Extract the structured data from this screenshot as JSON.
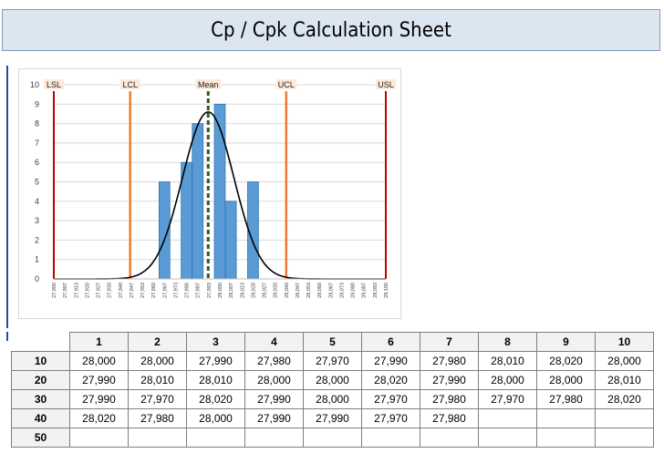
{
  "title": "Cp / Cpk Calculation Sheet",
  "colors": {
    "title_bg": "#dce6f1",
    "bar": "#5b9bd5",
    "spec_limit": "#c00000",
    "control_limit": "#ed7d31",
    "mean": "#375623",
    "curve": "#000000"
  },
  "chart_data": {
    "type": "bar",
    "title": "",
    "xlabel": "",
    "ylabel": "",
    "ylim": [
      0,
      10
    ],
    "yticks": [
      "0",
      "1",
      "2",
      "3",
      "4",
      "5",
      "6",
      "7",
      "8",
      "9",
      "10"
    ],
    "categories": [
      "27,900",
      "27,907",
      "27,913",
      "27,920",
      "27,927",
      "27,933",
      "27,940",
      "27,947",
      "27,953",
      "27,960",
      "27,967",
      "27,973",
      "27,980",
      "27,987",
      "27,993",
      "28,000",
      "28,007",
      "28,013",
      "28,020",
      "28,027",
      "28,033",
      "28,040",
      "28,047",
      "28,053",
      "28,060",
      "28,067",
      "28,073",
      "28,080",
      "28,087",
      "28,093",
      "28,100"
    ],
    "values": [
      0,
      0,
      0,
      0,
      0,
      0,
      0,
      0,
      0,
      0,
      5,
      0,
      6,
      8,
      0,
      9,
      4,
      0,
      5,
      0,
      0,
      0,
      0,
      0,
      0,
      0,
      0,
      0,
      0,
      0,
      0
    ],
    "limits": [
      {
        "label": "LSL",
        "value": 27900,
        "kind": "spec"
      },
      {
        "label": "LCL",
        "value": 27946,
        "kind": "control"
      },
      {
        "label": "Mean",
        "value": 27993,
        "kind": "mean"
      },
      {
        "label": "UCL",
        "value": 28040,
        "kind": "control"
      },
      {
        "label": "USL",
        "value": 28100,
        "kind": "spec"
      }
    ],
    "curve": {
      "mean": 27993,
      "sigma": 15.5,
      "peak": 8.6
    }
  },
  "table": {
    "columns": [
      "1",
      "2",
      "3",
      "4",
      "5",
      "6",
      "7",
      "8",
      "9",
      "10"
    ],
    "rows": [
      {
        "label": "10",
        "cells": [
          "28,000",
          "28,000",
          "27,990",
          "27,980",
          "27,970",
          "27,990",
          "27,980",
          "28,010",
          "28,020",
          "28,000"
        ]
      },
      {
        "label": "20",
        "cells": [
          "27,990",
          "28,010",
          "28,010",
          "28,000",
          "28,000",
          "28,020",
          "27,990",
          "28,000",
          "28,000",
          "28,010"
        ]
      },
      {
        "label": "30",
        "cells": [
          "27,990",
          "27,970",
          "28,020",
          "27,990",
          "28,000",
          "27,970",
          "27,980",
          "27,970",
          "27,980",
          "28,020"
        ]
      },
      {
        "label": "40",
        "cells": [
          "28,020",
          "27,980",
          "28,000",
          "27,990",
          "27,990",
          "27,970",
          "27,980",
          "",
          "",
          ""
        ]
      },
      {
        "label": "50",
        "cells": [
          "",
          "",
          "",
          "",
          "",
          "",
          "",
          "",
          "",
          ""
        ]
      }
    ]
  }
}
